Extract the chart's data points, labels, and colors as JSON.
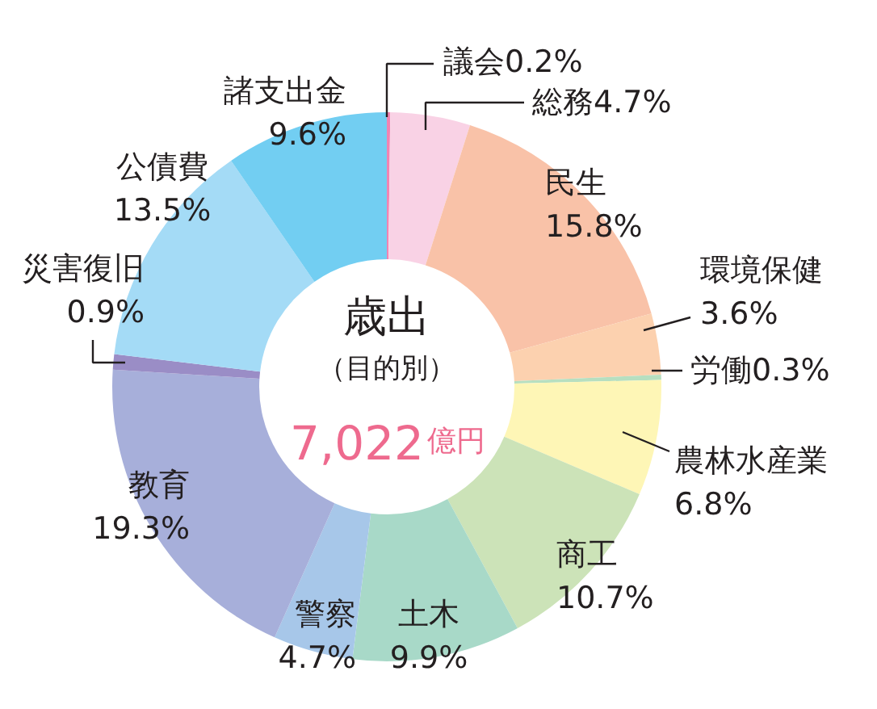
{
  "chart_data": {
    "type": "donut",
    "title": "歳出",
    "subtitle": "（目的別）",
    "annotations": [
      "7,022億円"
    ],
    "categories": [
      "議会",
      "総務",
      "民生",
      "環境保健",
      "労働",
      "農林水産業",
      "商工",
      "土木",
      "警察",
      "教育",
      "災害復旧",
      "公債費",
      "諸支出金"
    ],
    "values": [
      0.2,
      4.7,
      15.8,
      3.6,
      0.3,
      6.8,
      10.7,
      9.9,
      4.7,
      19.3,
      0.9,
      13.5,
      9.6
    ],
    "value_labels": [
      "0.2%",
      "4.7%",
      "15.8%",
      "3.6%",
      "0.3%",
      "6.8%",
      "10.7%",
      "9.9%",
      "4.7%",
      "19.3%",
      "0.9%",
      "13.5%",
      "9.6%"
    ],
    "colors": [
      "#f184b2",
      "#f9d2e5",
      "#f9c2a8",
      "#fcd1af",
      "#b7dfc0",
      "#fef6b6",
      "#cce3b8",
      "#a8d9c8",
      "#a7c7e9",
      "#a7afda",
      "#9a8dc6",
      "#a4dbf6",
      "#72cef2"
    ]
  }
}
